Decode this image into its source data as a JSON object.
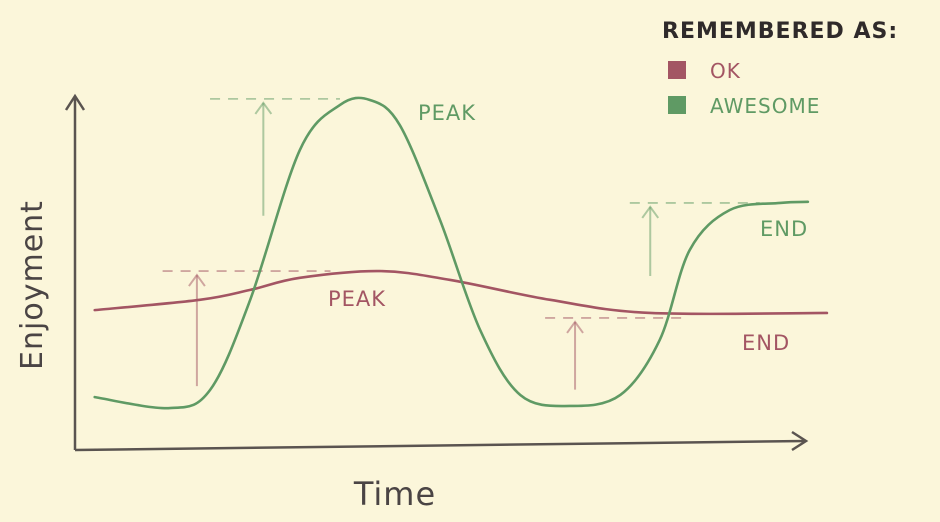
{
  "chart_data": {
    "type": "line",
    "title": "",
    "xlabel": "Time",
    "ylabel": "Enjoyment",
    "xlim": [
      0,
      100
    ],
    "ylim": [
      0,
      100
    ],
    "grid": false,
    "legend": {
      "title": "REMEMBERED AS:",
      "placement": "top-right",
      "entries": [
        {
          "label": "OK",
          "color": "#a35563"
        },
        {
          "label": "AWESOME",
          "color": "#5f9a64"
        }
      ]
    },
    "series": [
      {
        "key": "ok",
        "color": "#a35563",
        "points": [
          [
            2.7,
            39.4
          ],
          [
            17.1,
            42.3
          ],
          [
            24,
            45.1
          ],
          [
            30.8,
            48.5
          ],
          [
            41.8,
            50.4
          ],
          [
            51.4,
            47.9
          ],
          [
            65.1,
            42.3
          ],
          [
            78.8,
            38.6
          ],
          [
            103,
            38.6
          ]
        ],
        "annotations": [
          {
            "label": "PEAK",
            "level": 50.4,
            "from": 12,
            "to": 35,
            "arrow_at": 16.7,
            "arrow_base": 18
          },
          {
            "label": "END",
            "level": 37.2,
            "from": 64.4,
            "to": 84,
            "arrow_at": 68.5,
            "arrow_base": 17
          }
        ]
      },
      {
        "key": "awesome",
        "color": "#5f9a64",
        "points": [
          [
            2.7,
            14.9
          ],
          [
            13,
            11.8
          ],
          [
            18.5,
            16.9
          ],
          [
            24,
            42.3
          ],
          [
            30.8,
            84.5
          ],
          [
            36.3,
            97.2
          ],
          [
            40.4,
            98.6
          ],
          [
            44.5,
            91.5
          ],
          [
            50,
            64.8
          ],
          [
            55.5,
            33.8
          ],
          [
            61,
            15.5
          ],
          [
            67.8,
            12.4
          ],
          [
            74.7,
            15.5
          ],
          [
            80.1,
            31
          ],
          [
            84.2,
            56.3
          ],
          [
            89.7,
            67.6
          ],
          [
            96.6,
            69.6
          ],
          [
            100.4,
            69.9
          ]
        ],
        "annotations": [
          {
            "label": "PEAK",
            "level": 98.9,
            "from": 18.5,
            "to": 36.3,
            "arrow_at": 25.8,
            "arrow_base": 66
          },
          {
            "label": "END",
            "level": 69.6,
            "from": 76,
            "to": 93.8,
            "arrow_at": 78.8,
            "arrow_base": 49
          }
        ]
      }
    ]
  }
}
